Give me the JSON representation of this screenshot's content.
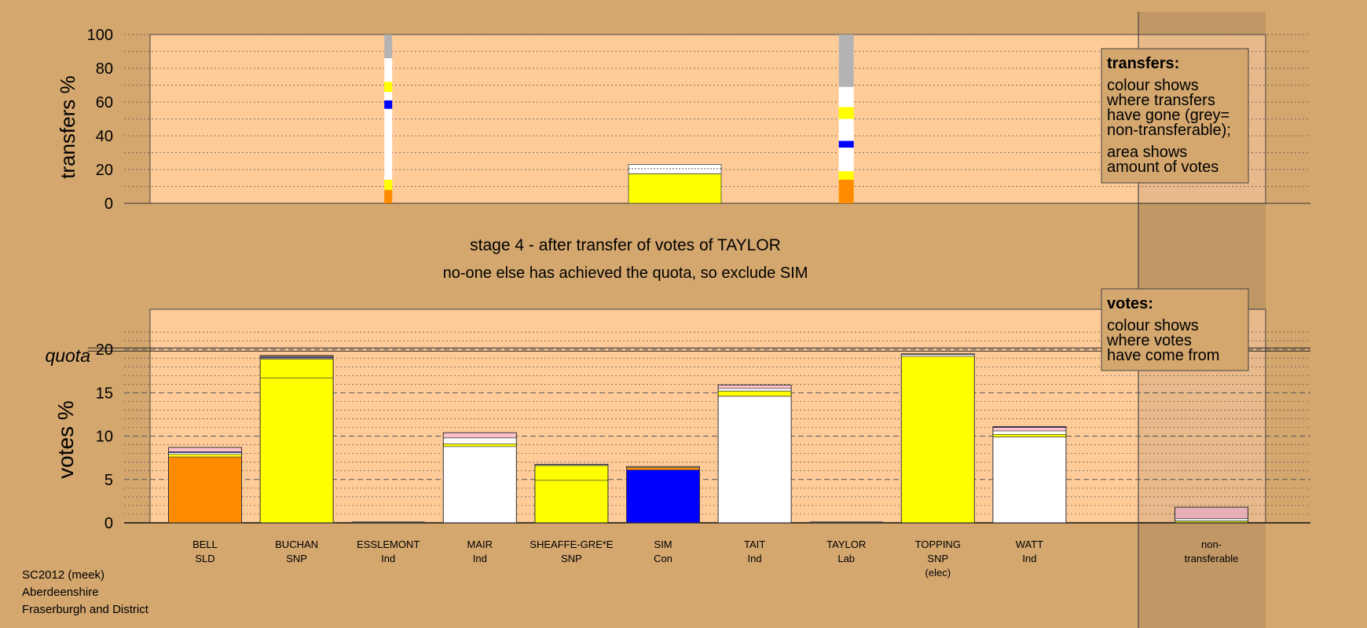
{
  "chart_data": [
    {
      "type": "bar",
      "ylabel": "transfers %",
      "ylim": [
        0,
        100
      ],
      "yticks": [
        0,
        20,
        40,
        60,
        80,
        100
      ],
      "legend": {
        "title": "transfers:",
        "lines": [
          "colour shows",
          "where transfers",
          "have gone (grey=",
          "non-transferable);",
          "area shows",
          "amount of votes"
        ]
      },
      "bars": [
        {
          "category": "ESSLEMONT",
          "segments": [
            {
              "value": 8,
              "color": "#FF8C00"
            },
            {
              "value": 6,
              "color": "#FFFF00"
            },
            {
              "value": 2,
              "color": "#FFFFFF"
            },
            {
              "value": 1,
              "color": "#FFFFFF"
            },
            {
              "value": 39,
              "color": "#FFFFFF"
            },
            {
              "value": 5,
              "color": "#0000FF"
            },
            {
              "value": 5,
              "color": "#FFFFFF"
            },
            {
              "value": 6,
              "color": "#FFFF00"
            },
            {
              "value": 14,
              "color": "#FFFFFF"
            },
            {
              "value": 14,
              "color": "#B3B3B3"
            }
          ]
        },
        {
          "category": "TAYLOR",
          "segments": [
            {
              "value": 14,
              "color": "#FF8C00"
            },
            {
              "value": 5,
              "color": "#FFFF00"
            },
            {
              "value": 14,
              "color": "#FFFFFF"
            },
            {
              "value": 4,
              "color": "#0000FF"
            },
            {
              "value": 13,
              "color": "#FFFFFF"
            },
            {
              "value": 7,
              "color": "#FFFF00"
            },
            {
              "value": 12,
              "color": "#FFFFFF"
            },
            {
              "value": 31,
              "color": "#B3B3B3"
            }
          ]
        },
        {
          "category": "SIM",
          "segments": [
            {
              "value": 17.5,
              "color": "#FFFF00"
            },
            {
              "value": 3,
              "color": "#FFFFFF"
            },
            {
              "value": 2.5,
              "color": "#FFFFFF"
            }
          ]
        }
      ]
    },
    {
      "type": "bar",
      "title": "stage 4 - after transfer of votes of TAYLOR",
      "subtitle": "no-one else has achieved the quota, so exclude SIM",
      "ylabel": "votes %",
      "ylim": [
        0,
        25
      ],
      "yticks": [
        0,
        5,
        10,
        15,
        20
      ],
      "quota": {
        "label": "quota",
        "value": 20
      },
      "legend": {
        "title": "votes:",
        "lines": [
          "colour shows",
          "where votes",
          "have come from"
        ]
      },
      "categories": [
        {
          "name": "BELL",
          "party": "SLD",
          "note": ""
        },
        {
          "name": "BUCHAN",
          "party": "SNP",
          "note": ""
        },
        {
          "name": "ESSLEMONT",
          "party": "Ind",
          "note": ""
        },
        {
          "name": "MAIR",
          "party": "Ind",
          "note": ""
        },
        {
          "name": "SHEAFFE-GRE*E",
          "party": "SNP",
          "note": ""
        },
        {
          "name": "SIM",
          "party": "Con",
          "note": ""
        },
        {
          "name": "TAIT",
          "party": "Ind",
          "note": ""
        },
        {
          "name": "TAYLOR",
          "party": "Lab",
          "note": ""
        },
        {
          "name": "TOPPING",
          "party": "SNP",
          "note": "(elec)"
        },
        {
          "name": "WATT",
          "party": "Ind",
          "note": ""
        },
        {
          "name": "non-",
          "party": "transferable",
          "note": ""
        }
      ],
      "stacks": [
        [
          {
            "value": 7.6,
            "color": "#FF8C00"
          },
          {
            "value": 0.3,
            "color": "#FFFF00"
          },
          {
            "value": 0.2,
            "color": "#FFFFFF"
          },
          {
            "value": 0.1,
            "color": "#0000FF"
          },
          {
            "value": 0.5,
            "color": "#FFC0CB"
          }
        ],
        [
          {
            "value": 16.7,
            "color": "#FFFF00"
          },
          {
            "value": 2.2,
            "color": "#FFFF00"
          },
          {
            "value": 0.1,
            "color": "#FFFFFF"
          },
          {
            "value": 0.1,
            "color": "#0000FF"
          },
          {
            "value": 0.1,
            "color": "#FFC0CB"
          },
          {
            "value": 0.1,
            "color": "#FF8C00"
          }
        ],
        [],
        [
          {
            "value": 8.8,
            "color": "#FFFFFF"
          },
          {
            "value": 0.3,
            "color": "#FFFF00"
          },
          {
            "value": 0.7,
            "color": "#FFFFFF"
          },
          {
            "value": 0.6,
            "color": "#FFC0CB"
          }
        ],
        [
          {
            "value": 4.9,
            "color": "#FFFF00"
          },
          {
            "value": 1.7,
            "color": "#FFFF00"
          },
          {
            "value": 0.1,
            "color": "#FFFFFF"
          },
          {
            "value": 0.05,
            "color": "#0000FF"
          }
        ],
        [
          {
            "value": 6.1,
            "color": "#0000FF"
          },
          {
            "value": 0.3,
            "color": "#FF8C00"
          },
          {
            "value": 0.1,
            "color": "#FFFFFF"
          }
        ],
        [
          {
            "value": 14.6,
            "color": "#FFFFFF"
          },
          {
            "value": 0.6,
            "color": "#FFFF00"
          },
          {
            "value": 0.3,
            "color": "#FFFFFF"
          },
          {
            "value": 0.4,
            "color": "#FFC0CB"
          }
        ],
        [],
        [
          {
            "value": 19.2,
            "color": "#FFFF00"
          },
          {
            "value": 0.2,
            "color": "#FFFFFF"
          },
          {
            "value": 0.1,
            "color": "#FFC0CB"
          }
        ],
        [
          {
            "value": 9.9,
            "color": "#FFFFFF"
          },
          {
            "value": 0.3,
            "color": "#FFFF00"
          },
          {
            "value": 0.4,
            "color": "#FFFFFF"
          },
          {
            "value": 0.4,
            "color": "#FFC0CB"
          },
          {
            "value": 0.1,
            "color": "#0000FF"
          }
        ],
        [
          {
            "value": 0.2,
            "color": "#FFFF00"
          },
          {
            "value": 0.3,
            "color": "#FFFFFF"
          },
          {
            "value": 1.3,
            "color": "#FFC0CB"
          }
        ]
      ]
    }
  ],
  "footer": [
    "SC2012 (meek)",
    "Aberdeenshire",
    "Fraserburgh and District"
  ]
}
